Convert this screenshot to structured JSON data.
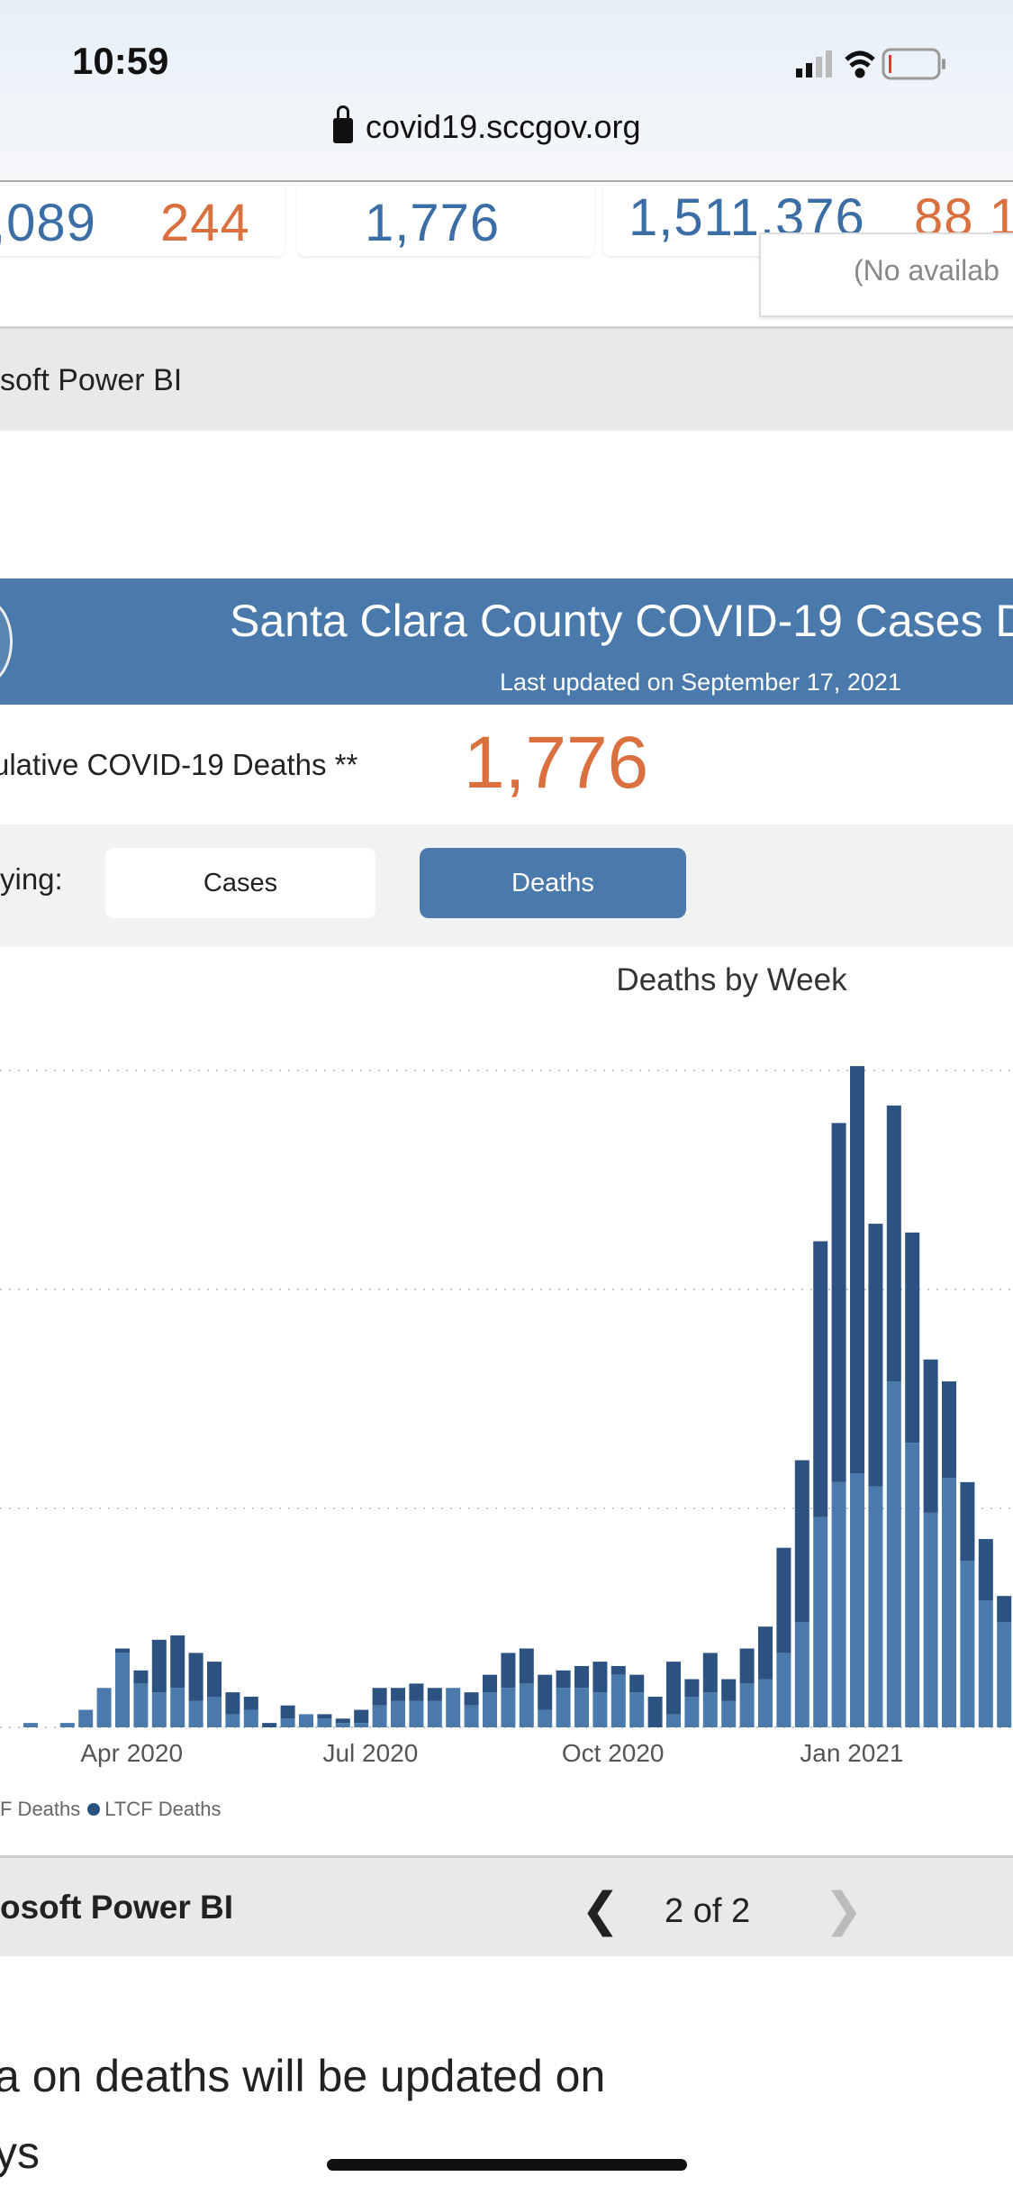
{
  "status_bar": {
    "time": "10:59"
  },
  "browser": {
    "url": "covid19.sccgov.org"
  },
  "stats_row": {
    "card1_value_a": ",089",
    "card1_value_b": "244",
    "card2_value": "1,776",
    "card3_value_a": "1,511,376",
    "card3_value_b": "88 1",
    "tooltip": "(No availab"
  },
  "powerbi_top": {
    "label": "soft Power BI"
  },
  "banner": {
    "title": "Santa Clara County COVID-19 Cases D",
    "updated": "Last updated on September 17, 2021"
  },
  "cumulative": {
    "label": "ulative COVID-19 Deaths **",
    "value": "1,776"
  },
  "toggle": {
    "label": "ying:",
    "options": [
      "Cases",
      "Deaths"
    ],
    "selected": "Deaths"
  },
  "colors": {
    "non_ltcf": "#4a7aab",
    "ltcf": "#2b5281",
    "banner": "#4a7aab",
    "accent_orange": "#d9703e"
  },
  "chart_data": {
    "type": "bar",
    "stacked": true,
    "title": "Deaths by Week",
    "xlabel": "",
    "ylabel": "",
    "ylim": [
      0,
      150
    ],
    "grid": true,
    "x": [
      1,
      2,
      3,
      4,
      5,
      6,
      7,
      8,
      9,
      10,
      11,
      12,
      13,
      14,
      15,
      16,
      17,
      18,
      19,
      20,
      21,
      22,
      23,
      24,
      25,
      26,
      27,
      28,
      29,
      30,
      31,
      32,
      33,
      34,
      35,
      36,
      37,
      38,
      39,
      40,
      41,
      42,
      43,
      44,
      45,
      46,
      47,
      48,
      49,
      50,
      51,
      52,
      53,
      54
    ],
    "x_tick_labels": [
      {
        "label": "Apr 2020",
        "at": 5.5
      },
      {
        "label": "Jul 2020",
        "at": 18.5
      },
      {
        "label": "Oct 2020",
        "at": 31.7
      },
      {
        "label": "Jan 2021",
        "at": 44.7
      }
    ],
    "series": [
      {
        "name": "Non-LTCF Deaths",
        "values": [
          1,
          0,
          1,
          4,
          9,
          17,
          10,
          8,
          9,
          6,
          7,
          3,
          4,
          0,
          2,
          3,
          2,
          1,
          1,
          5,
          6,
          6,
          6,
          9,
          5,
          8,
          9,
          10,
          4,
          9,
          9,
          8,
          12,
          8,
          0,
          3,
          7,
          8,
          6,
          10,
          11,
          17,
          24,
          48,
          56,
          58,
          55,
          79,
          65,
          49,
          57,
          38,
          29,
          24
        ]
      },
      {
        "name": "LTCF Deaths",
        "values": [
          0,
          0,
          0,
          0,
          0,
          1,
          3,
          12,
          12,
          11,
          8,
          5,
          3,
          1,
          3,
          0,
          1,
          1,
          3,
          4,
          3,
          4,
          3,
          0,
          3,
          4,
          8,
          8,
          8,
          4,
          5,
          7,
          2,
          4,
          7,
          12,
          4,
          9,
          5,
          8,
          12,
          24,
          37,
          63,
          82,
          93,
          60,
          63,
          48,
          35,
          22,
          18,
          14,
          6
        ]
      }
    ],
    "legend": {
      "placement": "bottom-left",
      "entries": [
        "F Deaths",
        "LTCF Deaths"
      ]
    }
  },
  "powerbi_bottom": {
    "label": "osoft Power BI",
    "page": "2 of 2"
  },
  "note": {
    "line1": "a on deaths will be updated on",
    "line2": "ys"
  }
}
